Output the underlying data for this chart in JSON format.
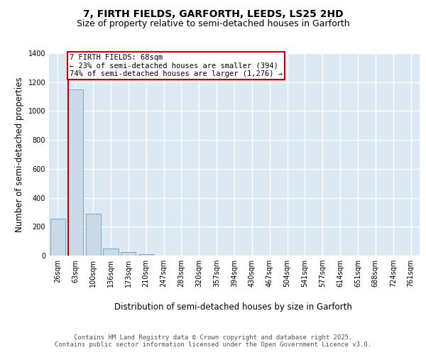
{
  "title_line1": "7, FIRTH FIELDS, GARFORTH, LEEDS, LS25 2HD",
  "title_line2": "Size of property relative to semi-detached houses in Garforth",
  "xlabel": "Distribution of semi-detached houses by size in Garforth",
  "ylabel": "Number of semi-detached properties",
  "categories": [
    "26sqm",
    "63sqm",
    "100sqm",
    "136sqm",
    "173sqm",
    "210sqm",
    "247sqm",
    "283sqm",
    "320sqm",
    "357sqm",
    "394sqm",
    "430sqm",
    "467sqm",
    "504sqm",
    "541sqm",
    "577sqm",
    "614sqm",
    "651sqm",
    "688sqm",
    "724sqm",
    "761sqm"
  ],
  "values": [
    253,
    1150,
    290,
    50,
    25,
    10,
    2,
    0,
    0,
    0,
    0,
    0,
    0,
    0,
    0,
    0,
    0,
    0,
    0,
    0,
    0
  ],
  "bar_color": "#c9d9e8",
  "bar_edge_color": "#7fa8c9",
  "property_bar_index": 1,
  "property_line_color": "#cc0000",
  "annotation_text": "7 FIRTH FIELDS: 68sqm\n← 23% of semi-detached houses are smaller (394)\n74% of semi-detached houses are larger (1,276) →",
  "annotation_box_facecolor": "#ffffff",
  "annotation_box_edgecolor": "#cc0000",
  "ylim": [
    0,
    1400
  ],
  "yticks": [
    0,
    200,
    400,
    600,
    800,
    1000,
    1200,
    1400
  ],
  "footer_text": "Contains HM Land Registry data © Crown copyright and database right 2025.\nContains public sector information licensed under the Open Government Licence v3.0.",
  "plot_bg_color": "#dce8f2",
  "grid_color": "#ffffff",
  "title_fontsize": 10,
  "subtitle_fontsize": 9,
  "axis_label_fontsize": 8.5,
  "tick_fontsize": 7,
  "footer_fontsize": 6.5,
  "annotation_fontsize": 7.5
}
